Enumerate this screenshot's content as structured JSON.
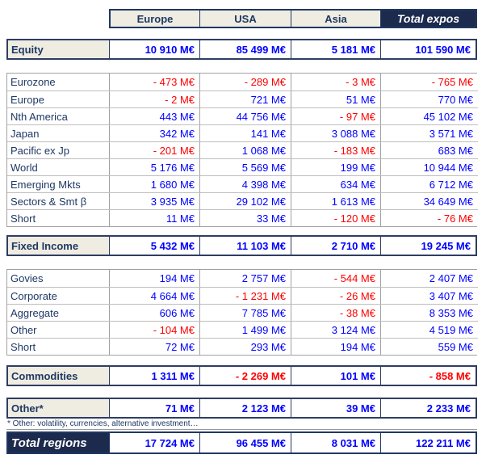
{
  "header": {
    "columns": [
      "Europe",
      "USA",
      "Asia",
      "Total expos"
    ]
  },
  "equity": {
    "label": "Equity",
    "values": [
      "10 910 M€",
      "85 499 M€",
      "5 181 M€",
      "101 590 M€"
    ]
  },
  "equity_detail": {
    "rows": [
      {
        "label": "Eurozone",
        "values": [
          "- 473 M€",
          "- 289 M€",
          "- 3 M€",
          "- 765 M€"
        ]
      },
      {
        "label": "Europe",
        "values": [
          "- 2 M€",
          "721 M€",
          "51 M€",
          "770 M€"
        ]
      },
      {
        "label": "Nth America",
        "values": [
          "443 M€",
          "44 756 M€",
          "- 97 M€",
          "45 102 M€"
        ]
      },
      {
        "label": "Japan",
        "values": [
          "342 M€",
          "141 M€",
          "3 088 M€",
          "3 571 M€"
        ]
      },
      {
        "label": "Pacific ex Jp",
        "values": [
          "- 201 M€",
          "1 068 M€",
          "- 183 M€",
          "683 M€"
        ]
      },
      {
        "label": "World",
        "values": [
          "5 176 M€",
          "5 569 M€",
          "199 M€",
          "10 944 M€"
        ]
      },
      {
        "label": "Emerging Mkts",
        "values": [
          "1 680 M€",
          "4 398 M€",
          "634 M€",
          "6 712 M€"
        ]
      },
      {
        "label": "Sectors & Smt β",
        "values": [
          "3 935 M€",
          "29 102 M€",
          "1 613 M€",
          "34 649 M€"
        ]
      },
      {
        "label": "Short",
        "values": [
          "11 M€",
          "33 M€",
          "- 120 M€",
          "- 76 M€"
        ]
      }
    ]
  },
  "fixed_income": {
    "label": "Fixed Income",
    "values": [
      "5 432 M€",
      "11 103 M€",
      "2 710 M€",
      "19 245 M€"
    ]
  },
  "fixed_income_detail": {
    "rows": [
      {
        "label": "Govies",
        "values": [
          "194 M€",
          "2 757 M€",
          "- 544 M€",
          "2 407 M€"
        ]
      },
      {
        "label": "Corporate",
        "values": [
          "4 664 M€",
          "- 1 231 M€",
          "- 26 M€",
          "3 407 M€"
        ]
      },
      {
        "label": "Aggregate",
        "values": [
          "606 M€",
          "7 785 M€",
          "- 38 M€",
          "8 353 M€"
        ]
      },
      {
        "label": "Other",
        "values": [
          "- 104 M€",
          "1 499 M€",
          "3 124 M€",
          "4 519 M€"
        ]
      },
      {
        "label": "Short",
        "values": [
          "72 M€",
          "293 M€",
          "194 M€",
          "559 M€"
        ]
      }
    ]
  },
  "commodities": {
    "label": "Commodities",
    "values": [
      "1 311 M€",
      "- 2 269 M€",
      "101 M€",
      "- 858 M€"
    ]
  },
  "other": {
    "label": "Other*",
    "values": [
      "71 M€",
      "2 123 M€",
      "39 M€",
      "2 233 M€"
    ],
    "footnote": "* Other: volatility, currencies, alternative investment…"
  },
  "total_regions": {
    "label": "Total regions",
    "values": [
      "17 724 M€",
      "96 455 M€",
      "8 031 M€",
      "122 211 M€"
    ]
  },
  "unit": "M€",
  "colors": {
    "positive": "#0000FF",
    "negative": "#FF0000",
    "navy_text": "#1F3864",
    "navy_bg": "#1C2A4D",
    "cream_bg": "#EFECE1",
    "block_border": "#2E3D63"
  }
}
